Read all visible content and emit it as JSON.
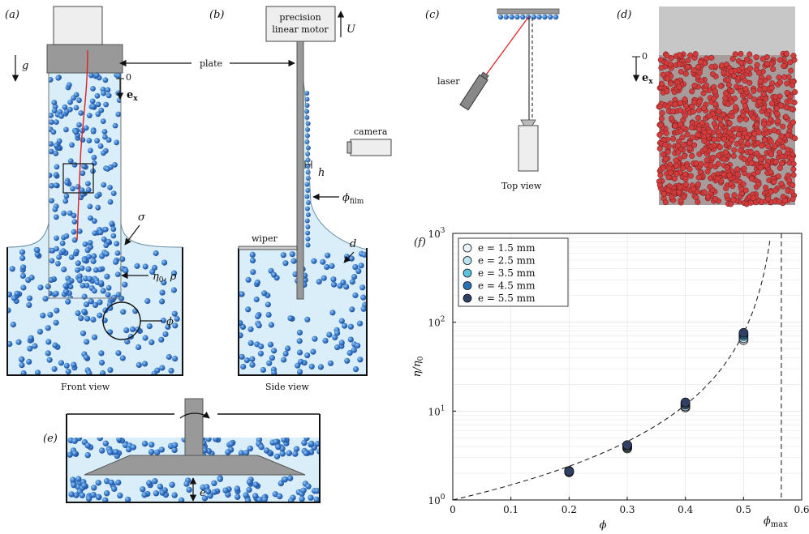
{
  "panels": {
    "a": {
      "label": "(a)",
      "caption": "Front view",
      "g": "g",
      "zero": "0",
      "ex": "e",
      "ex_sub": "x",
      "sigma": "σ",
      "eta_rho": "η",
      "eta_rho_sub": "0",
      "eta_rho_rest": ", ρ",
      "phi": "ϕ"
    },
    "b": {
      "label": "(b)",
      "caption": "Side view",
      "motor_line1": "precision",
      "motor_line2": "linear motor",
      "U": "U",
      "plate": "plate",
      "camera": "camera",
      "h": "h",
      "phi_film": "ϕ",
      "phi_film_sub": "film",
      "wiper": "wiper",
      "d": "d"
    },
    "c": {
      "label": "(c)",
      "laser": "laser",
      "caption": "Top view"
    },
    "d": {
      "label": "(d)",
      "zero": "0",
      "ex": "e",
      "ex_sub": "x"
    },
    "e": {
      "label": "(e)",
      "e": "e"
    },
    "f": {
      "label": "(f)"
    }
  },
  "chart_data": {
    "type": "scatter",
    "xlabel": "ϕ",
    "ylabel": "η/η0",
    "x_ticks": [
      "0",
      "0.1",
      "0.2",
      "0.3",
      "0.4",
      "0.5",
      "0.6"
    ],
    "y_ticks": [
      "10^0",
      "10^1",
      "10^2",
      "10^3"
    ],
    "xlim": [
      0,
      0.6
    ],
    "ylim": [
      1,
      1000
    ],
    "y_scale": "log",
    "grid": true,
    "legend": "top-left",
    "phi_max_label": "ϕmax",
    "phi_max": 0.565,
    "series": [
      {
        "name": "e = 1.5 mm",
        "color": "#eaf4fb",
        "x": [
          0.2,
          0.3,
          0.4,
          0.5
        ],
        "y": [
          2.05,
          3.8,
          11.0,
          63
        ]
      },
      {
        "name": "e = 2.5 mm",
        "color": "#b9e3f2",
        "x": [
          0.2,
          0.3,
          0.4,
          0.5
        ],
        "y": [
          2.08,
          3.9,
          11.3,
          66
        ]
      },
      {
        "name": "e = 3.5 mm",
        "color": "#5cc0e0",
        "x": [
          0.2,
          0.3,
          0.4,
          0.5
        ],
        "y": [
          2.1,
          4.0,
          11.8,
          70
        ]
      },
      {
        "name": "e = 4.5 mm",
        "color": "#2a72b5",
        "x": [
          0.2,
          0.3,
          0.4,
          0.5
        ],
        "y": [
          2.12,
          4.1,
          12.2,
          73
        ]
      },
      {
        "name": "e = 5.5 mm",
        "color": "#2f3f66",
        "x": [
          0.2,
          0.3,
          0.4,
          0.5
        ],
        "y": [
          2.1,
          4.15,
          12.5,
          76
        ]
      }
    ]
  }
}
